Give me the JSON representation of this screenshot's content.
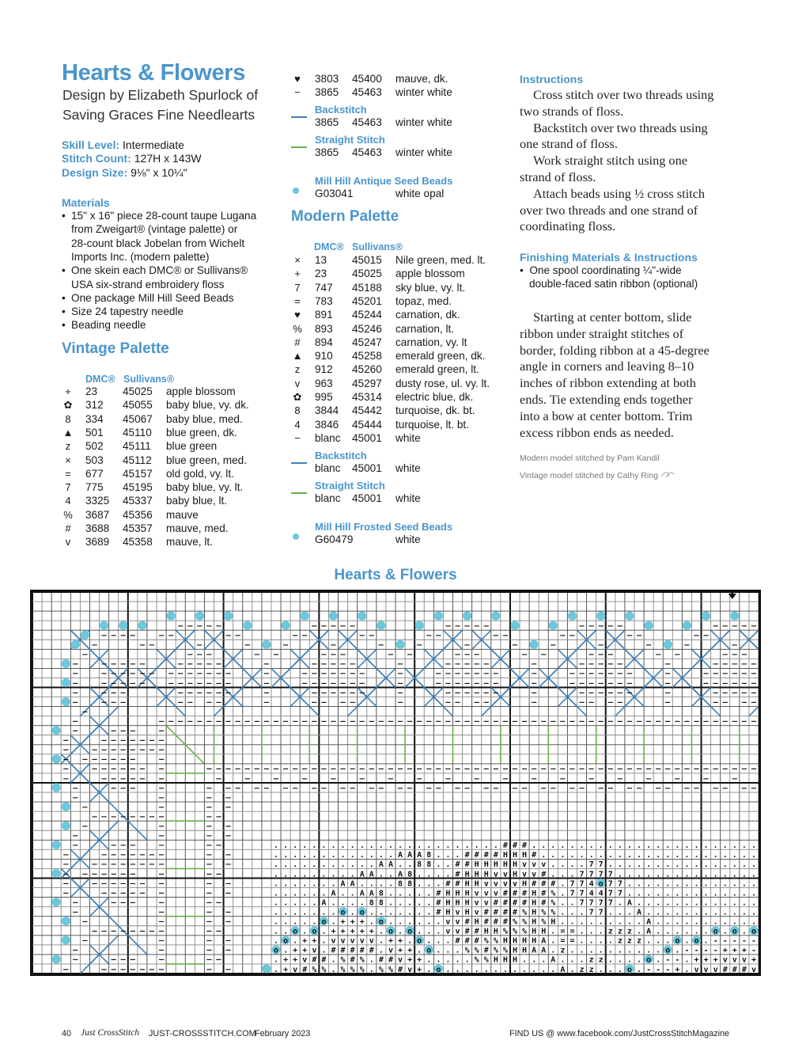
{
  "header": {
    "title": "Hearts & Flowers",
    "subtitle_lines": [
      "Design by Elizabeth Spurlock of",
      "Saving Graces Fine Needlearts"
    ],
    "skill_label": "Skill Level:",
    "skill_value": "Intermediate",
    "count_label": "Stitch Count:",
    "count_value": "127H x 143W",
    "size_label": "Design Size:",
    "size_value": "9⅛\" x 10¼\""
  },
  "materials": {
    "heading": "Materials",
    "items": [
      [
        "15\" x 16\" piece 28-count taupe Lugana",
        "from Zweigart® (vintage palette) or",
        "28-count black Jobelan from Wichelt",
        "Imports Inc. (modern palette)"
      ],
      [
        "One skein each DMC® or Sullivans®",
        "USA six-strand embroidery floss"
      ],
      [
        "One package Mill Hill Seed Beads"
      ],
      [
        "Size 24 tapestry needle"
      ],
      [
        "Beading needle"
      ]
    ]
  },
  "vintage": {
    "heading": "Vintage Palette",
    "col_dmc": "DMC®",
    "col_sullivans": "Sullivans®",
    "threads": [
      {
        "symbol": "+",
        "dmc": "23",
        "sullivans": "45025",
        "name": "apple blossom"
      },
      {
        "symbol": "✿",
        "dmc": "312",
        "sullivans": "45055",
        "name": "baby blue, vy. dk."
      },
      {
        "symbol": "8",
        "dmc": "334",
        "sullivans": "45067",
        "name": "baby blue, med."
      },
      {
        "symbol": "▲",
        "dmc": "501",
        "sullivans": "45110",
        "name": "blue green, dk."
      },
      {
        "symbol": "z",
        "dmc": "502",
        "sullivans": "45111",
        "name": "blue green"
      },
      {
        "symbol": "×",
        "dmc": "503",
        "sullivans": "45112",
        "name": "blue green, med."
      },
      {
        "symbol": "=",
        "dmc": "677",
        "sullivans": "45157",
        "name": "old gold, vy. lt."
      },
      {
        "symbol": "7",
        "dmc": "775",
        "sullivans": "45195",
        "name": "baby blue, vy. lt."
      },
      {
        "symbol": "4",
        "dmc": "3325",
        "sullivans": "45337",
        "name": "baby blue, lt."
      },
      {
        "symbol": "%",
        "dmc": "3687",
        "sullivans": "45356",
        "name": "mauve"
      },
      {
        "symbol": "#",
        "dmc": "3688",
        "sullivans": "45357",
        "name": "mauve, med."
      },
      {
        "symbol": "v",
        "dmc": "3689",
        "sullivans": "45358",
        "name": "mauve, lt."
      },
      {
        "symbol": "♥",
        "dmc": "3803",
        "sullivans": "45400",
        "name": "mauve, dk."
      },
      {
        "symbol": "−",
        "dmc": "3865",
        "sullivans": "45463",
        "name": "winter white"
      }
    ],
    "backstitch_label": "Backstitch",
    "backstitch": {
      "dmc": "3865",
      "sullivans": "45463",
      "name": "winter white"
    },
    "straight_label": "Straight Stitch",
    "straight": {
      "dmc": "3865",
      "sullivans": "45463",
      "name": "winter white"
    },
    "beads_label": "Mill Hill Antique Seed Beads",
    "beads": {
      "code": "G03041",
      "name": "white opal"
    }
  },
  "modern": {
    "heading": "Modern Palette",
    "col_dmc": "DMC®",
    "col_sullivans": "Sullivans®",
    "threads": [
      {
        "symbol": "×",
        "dmc": "13",
        "sullivans": "45015",
        "name": "Nile green, med. lt."
      },
      {
        "symbol": "+",
        "dmc": "23",
        "sullivans": "45025",
        "name": "apple blossom"
      },
      {
        "symbol": "7",
        "dmc": "747",
        "sullivans": "45188",
        "name": "sky blue, vy. lt."
      },
      {
        "symbol": "=",
        "dmc": "783",
        "sullivans": "45201",
        "name": "topaz, med."
      },
      {
        "symbol": "♥",
        "dmc": "891",
        "sullivans": "45244",
        "name": "carnation, dk."
      },
      {
        "symbol": "%",
        "dmc": "893",
        "sullivans": "45246",
        "name": "carnation, lt."
      },
      {
        "symbol": "#",
        "dmc": "894",
        "sullivans": "45247",
        "name": "carnation, vy. lt"
      },
      {
        "symbol": "▲",
        "dmc": "910",
        "sullivans": "45258",
        "name": "emerald green, dk."
      },
      {
        "symbol": "z",
        "dmc": "912",
        "sullivans": "45260",
        "name": "emerald green, lt."
      },
      {
        "symbol": "v",
        "dmc": "963",
        "sullivans": "45297",
        "name": "dusty rose, ul. vy. lt."
      },
      {
        "symbol": "✿",
        "dmc": "995",
        "sullivans": "45314",
        "name": "electric blue, dk."
      },
      {
        "symbol": "8",
        "dmc": "3844",
        "sullivans": "45442",
        "name": "turquoise, dk. bt."
      },
      {
        "symbol": "4",
        "dmc": "3846",
        "sullivans": "45444",
        "name": "turquoise, lt. bt."
      },
      {
        "symbol": "−",
        "dmc": "blanc",
        "sullivans": "45001",
        "name": "white"
      }
    ],
    "backstitch_label": "Backstitch",
    "backstitch": {
      "dmc": "blanc",
      "sullivans": "45001",
      "name": "white"
    },
    "straight_label": "Straight Stitch",
    "straight": {
      "dmc": "blanc",
      "sullivans": "45001",
      "name": "white"
    },
    "beads_label": "Mill Hill Frosted Seed Beads",
    "beads": {
      "code": "G60479",
      "name": "white"
    }
  },
  "instructions": {
    "heading": "Instructions",
    "lines": [
      "Cross stitch over two threads using",
      "two strands of floss.",
      "Backstitch over two threads using",
      "one strand of floss.",
      "Work straight stitch using one",
      "strand of floss.",
      "Attach beads using ½ cross stitch",
      "over two threads and one strand of",
      "coordinating floss."
    ],
    "indented": [
      0,
      2,
      4,
      6
    ]
  },
  "finishing": {
    "heading": "Finishing Materials & Instructions",
    "bullet_lines": [
      "One spool coordinating ¼\"-wide",
      "double-faced satin ribbon (optional)"
    ],
    "paragraph_lines": [
      "Starting at center bottom, slide",
      "ribbon under straight stitches of",
      "border, folding ribbon at a 45-degree",
      "angle in corners and leaving 8–10",
      "inches of ribbon extending at both",
      "ends. Tie extending ends together",
      "into a bow at center bottom. Trim",
      "excess ribbon ends as needed."
    ],
    "credit_modern": "Modern model stitched by Pam Kandil",
    "credit_vintage": "Vintage model stitched by Cathy Ring"
  },
  "chart": {
    "title": "Hearts & Flowers",
    "columns": 76,
    "rows": 40,
    "colors": {
      "bead": "#6cc8dc",
      "backstitch": "#3f7fb5",
      "straight": "#6ab04c",
      "heading": "#4a95cc"
    },
    "motif_rows": [
      "........................###........................",
      ".............AAA8...####HHH#.......................",
      "...........AA..88..##HHHHHvvv....77................",
      ".........AA..A8....#HHHvvHvv#...7777...............",
      ".......AA....88...##HHvvvvH###.774o77..............",
      "......A..AA8.....#HHHvvv###H#%.774477..............",
      ".....A....88.....#HHHvv####H#%..7777.A.............",
      ".......o.o.......#HvHv####%H%%...77...A............",
      ".....o.+++.o......vv#H###%%H%H.........A...........",
      "..o.o.+++++.o.o...vv##HH%%%HH.==...zzz.A......o.o.o",
      ".o.++.vvvvv.++.o...###%%HHHHA.==....zzz...o.o.-----",
      "o.++v.#####.v++.o...%%#%%HHAA.z..........o.----+++-",
      ".++v##.%#%.##v++.....%%HHH...A...zz....o.--.+++vvv+",
      ".+v#%%.%%%.%%#v+.o............A.zz...o.---+.vvv###v"
    ],
    "symbol_glyphs": {
      "H": "♥",
      "A": "▲",
      "%": "⁒",
      "#": "#",
      "v": "v",
      "+": "+",
      "7": "7",
      "4": "4",
      "8": "8",
      "z": "z",
      "=": "=",
      "-": "−"
    }
  },
  "footer": {
    "page": "40",
    "magazine": "Just CrossStitch",
    "site": "JUST-CROSSSTITCH.COM",
    "issue": "February 2023",
    "social": "FIND US @ www.facebook.com/JustCrossStitchMagazine"
  }
}
